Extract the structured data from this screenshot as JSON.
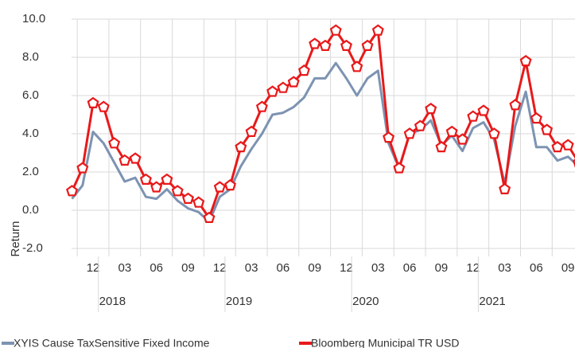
{
  "chart_data": {
    "type": "line",
    "y_label": "Return",
    "categories": [
      null,
      null,
      "12",
      null,
      null,
      "03",
      null,
      null,
      "06",
      null,
      null,
      "09",
      null,
      null,
      "12",
      null,
      null,
      "03",
      null,
      null,
      "06",
      null,
      null,
      "09",
      null,
      null,
      "12",
      null,
      null,
      "03",
      null,
      null,
      "06",
      null,
      null,
      "09",
      null,
      null,
      "12",
      null,
      null,
      "03",
      null,
      null,
      "06",
      null,
      null,
      "09",
      null
    ],
    "year_labels": [
      "2018",
      "2019",
      "2020",
      "2021"
    ],
    "series": [
      {
        "name": "XYIS Cause TaxSensitive Fixed Income",
        "color": "#7d93b2",
        "marker": "none",
        "values": [
          0.6,
          1.3,
          4.1,
          3.5,
          2.5,
          1.5,
          1.7,
          0.7,
          0.6,
          1.1,
          0.5,
          0.1,
          -0.1,
          -0.6,
          0.7,
          1.1,
          2.3,
          3.2,
          4.0,
          5.0,
          5.1,
          5.4,
          5.9,
          6.9,
          6.9,
          7.7,
          6.9,
          6.0,
          6.9,
          7.3,
          3.5,
          2.2,
          4.0,
          4.2,
          4.7,
          3.4,
          3.9,
          3.1,
          4.3,
          4.6,
          3.7,
          1.4,
          4.4,
          6.2,
          3.3,
          3.3,
          2.6,
          2.8,
          2.3
        ]
      },
      {
        "name": "Bloomberg Municipal TR USD",
        "color": "#e8191a",
        "marker": "pentagon",
        "values": [
          1.0,
          2.2,
          5.6,
          5.4,
          3.5,
          2.6,
          2.7,
          1.6,
          1.2,
          1.6,
          1.0,
          0.6,
          0.4,
          -0.4,
          1.2,
          1.3,
          3.3,
          4.1,
          5.4,
          6.2,
          6.4,
          6.7,
          7.3,
          8.7,
          8.6,
          9.4,
          8.6,
          7.5,
          8.6,
          9.4,
          3.8,
          2.2,
          4.0,
          4.4,
          5.3,
          3.3,
          4.1,
          3.7,
          4.9,
          5.2,
          4.0,
          1.1,
          5.5,
          7.8,
          4.8,
          4.2,
          3.3,
          3.4,
          2.5
        ]
      }
    ],
    "ylim": [
      -2,
      10
    ],
    "yticks": [
      {
        "value": -2,
        "label": "-2.0"
      },
      {
        "value": 0,
        "label": "0.0"
      },
      {
        "value": 2,
        "label": "2.0"
      },
      {
        "value": 4,
        "label": "4.0"
      },
      {
        "value": 6,
        "label": "6.0"
      },
      {
        "value": 8,
        "label": "8.0"
      },
      {
        "value": 10,
        "label": "10.0"
      }
    ],
    "grid": true
  }
}
